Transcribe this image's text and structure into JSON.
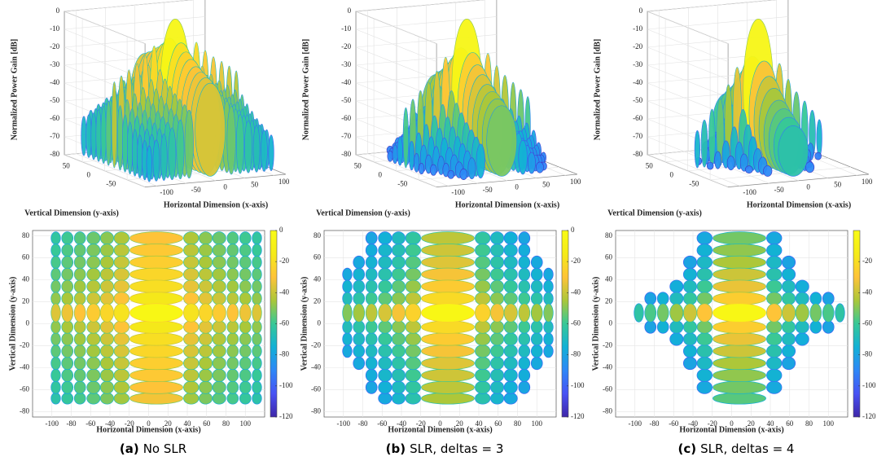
{
  "chart_data": [
    {
      "type": "surface",
      "xlabel": "Horizontal Dimension (x-axis)",
      "ylabel": "Vertical Dimension (y-axis)",
      "zlabel": "Normalized Power Gain [dB]",
      "xlim": [
        -120,
        120
      ],
      "ylim": [
        -90,
        90
      ],
      "zlim": [
        -80,
        0
      ],
      "xticks": [
        -100,
        -50,
        0,
        50,
        100
      ],
      "yticks": [
        -50,
        0,
        50
      ],
      "zticks": [
        -80,
        -70,
        -60,
        -50,
        -40,
        -30,
        -20,
        -10,
        0
      ]
    },
    {
      "type": "surface",
      "xlabel": "Horizontal Dimension (x-axis)",
      "ylabel": "Vertical Dimension (y-axis)",
      "zlabel": "Normalized Power Gain [dB]",
      "xlim": [
        -120,
        120
      ],
      "ylim": [
        -90,
        90
      ],
      "zlim": [
        -80,
        0
      ],
      "xticks": [
        -100,
        -50,
        0,
        50,
        100
      ],
      "yticks": [
        -50,
        0,
        50
      ],
      "zticks": [
        -80,
        -70,
        -60,
        -50,
        -40,
        -30,
        -20,
        -10,
        0
      ]
    },
    {
      "type": "surface",
      "xlabel": "Horizontal Dimension (x-axis)",
      "ylabel": "Vertical Dimension (y-axis)",
      "zlabel": "Normalized Power Gain [dB]",
      "xlim": [
        -120,
        120
      ],
      "ylim": [
        -90,
        90
      ],
      "zlim": [
        -80,
        0
      ],
      "xticks": [
        -100,
        -50,
        0,
        50,
        100
      ],
      "yticks": [
        -50,
        0,
        50
      ],
      "zticks": [
        -80,
        -70,
        -60,
        -50,
        -40,
        -30,
        -20,
        -10,
        0
      ]
    },
    {
      "type": "top-view",
      "xlabel": "Horizontal Dimension (x-axis)",
      "ylabel": "Vertical Dimension (y-axis)",
      "xlim": [
        -120,
        120
      ],
      "ylim": [
        -85,
        85
      ],
      "xticks": [
        -100,
        -80,
        -60,
        -40,
        -20,
        0,
        20,
        40,
        60,
        80,
        100
      ],
      "yticks": [
        -80,
        -60,
        -40,
        -20,
        0,
        20,
        40,
        60,
        80
      ],
      "clim": [
        -120,
        0
      ],
      "cticks": [
        -120,
        -100,
        -80,
        -60,
        -40,
        -20,
        0
      ]
    },
    {
      "type": "top-view",
      "xlabel": "Horizontal Dimension (x-axis)",
      "ylabel": "Vertical Dimension (y-axis)",
      "xlim": [
        -120,
        120
      ],
      "ylim": [
        -85,
        85
      ],
      "xticks": [
        -100,
        -80,
        -60,
        -40,
        -20,
        0,
        20,
        40,
        60,
        80,
        100
      ],
      "yticks": [
        -80,
        -60,
        -40,
        -20,
        0,
        20,
        40,
        60,
        80
      ],
      "clim": [
        -120,
        0
      ],
      "cticks": [
        -120,
        -100,
        -80,
        -60,
        -40,
        -20,
        0
      ]
    },
    {
      "type": "top-view",
      "xlabel": "Horizontal Dimension (x-axis)",
      "ylabel": "Vertical Dimension (y-axis)",
      "xlim": [
        -120,
        120
      ],
      "ylim": [
        -85,
        85
      ],
      "xticks": [
        -100,
        -80,
        -60,
        -40,
        -20,
        0,
        20,
        40,
        60,
        80,
        100
      ],
      "yticks": [
        -80,
        -60,
        -40,
        -20,
        0,
        20,
        40,
        60,
        80
      ],
      "clim": [
        -120,
        0
      ],
      "cticks": [
        -120,
        -100,
        -80,
        -60,
        -40,
        -20
      ]
    }
  ],
  "captions": [
    {
      "label": "(a)",
      "text": "No SLR"
    },
    {
      "label": "(b)",
      "text": "SLR, deltas = 3"
    },
    {
      "label": "(c)",
      "text": "SLR, deltas = 4"
    }
  ]
}
